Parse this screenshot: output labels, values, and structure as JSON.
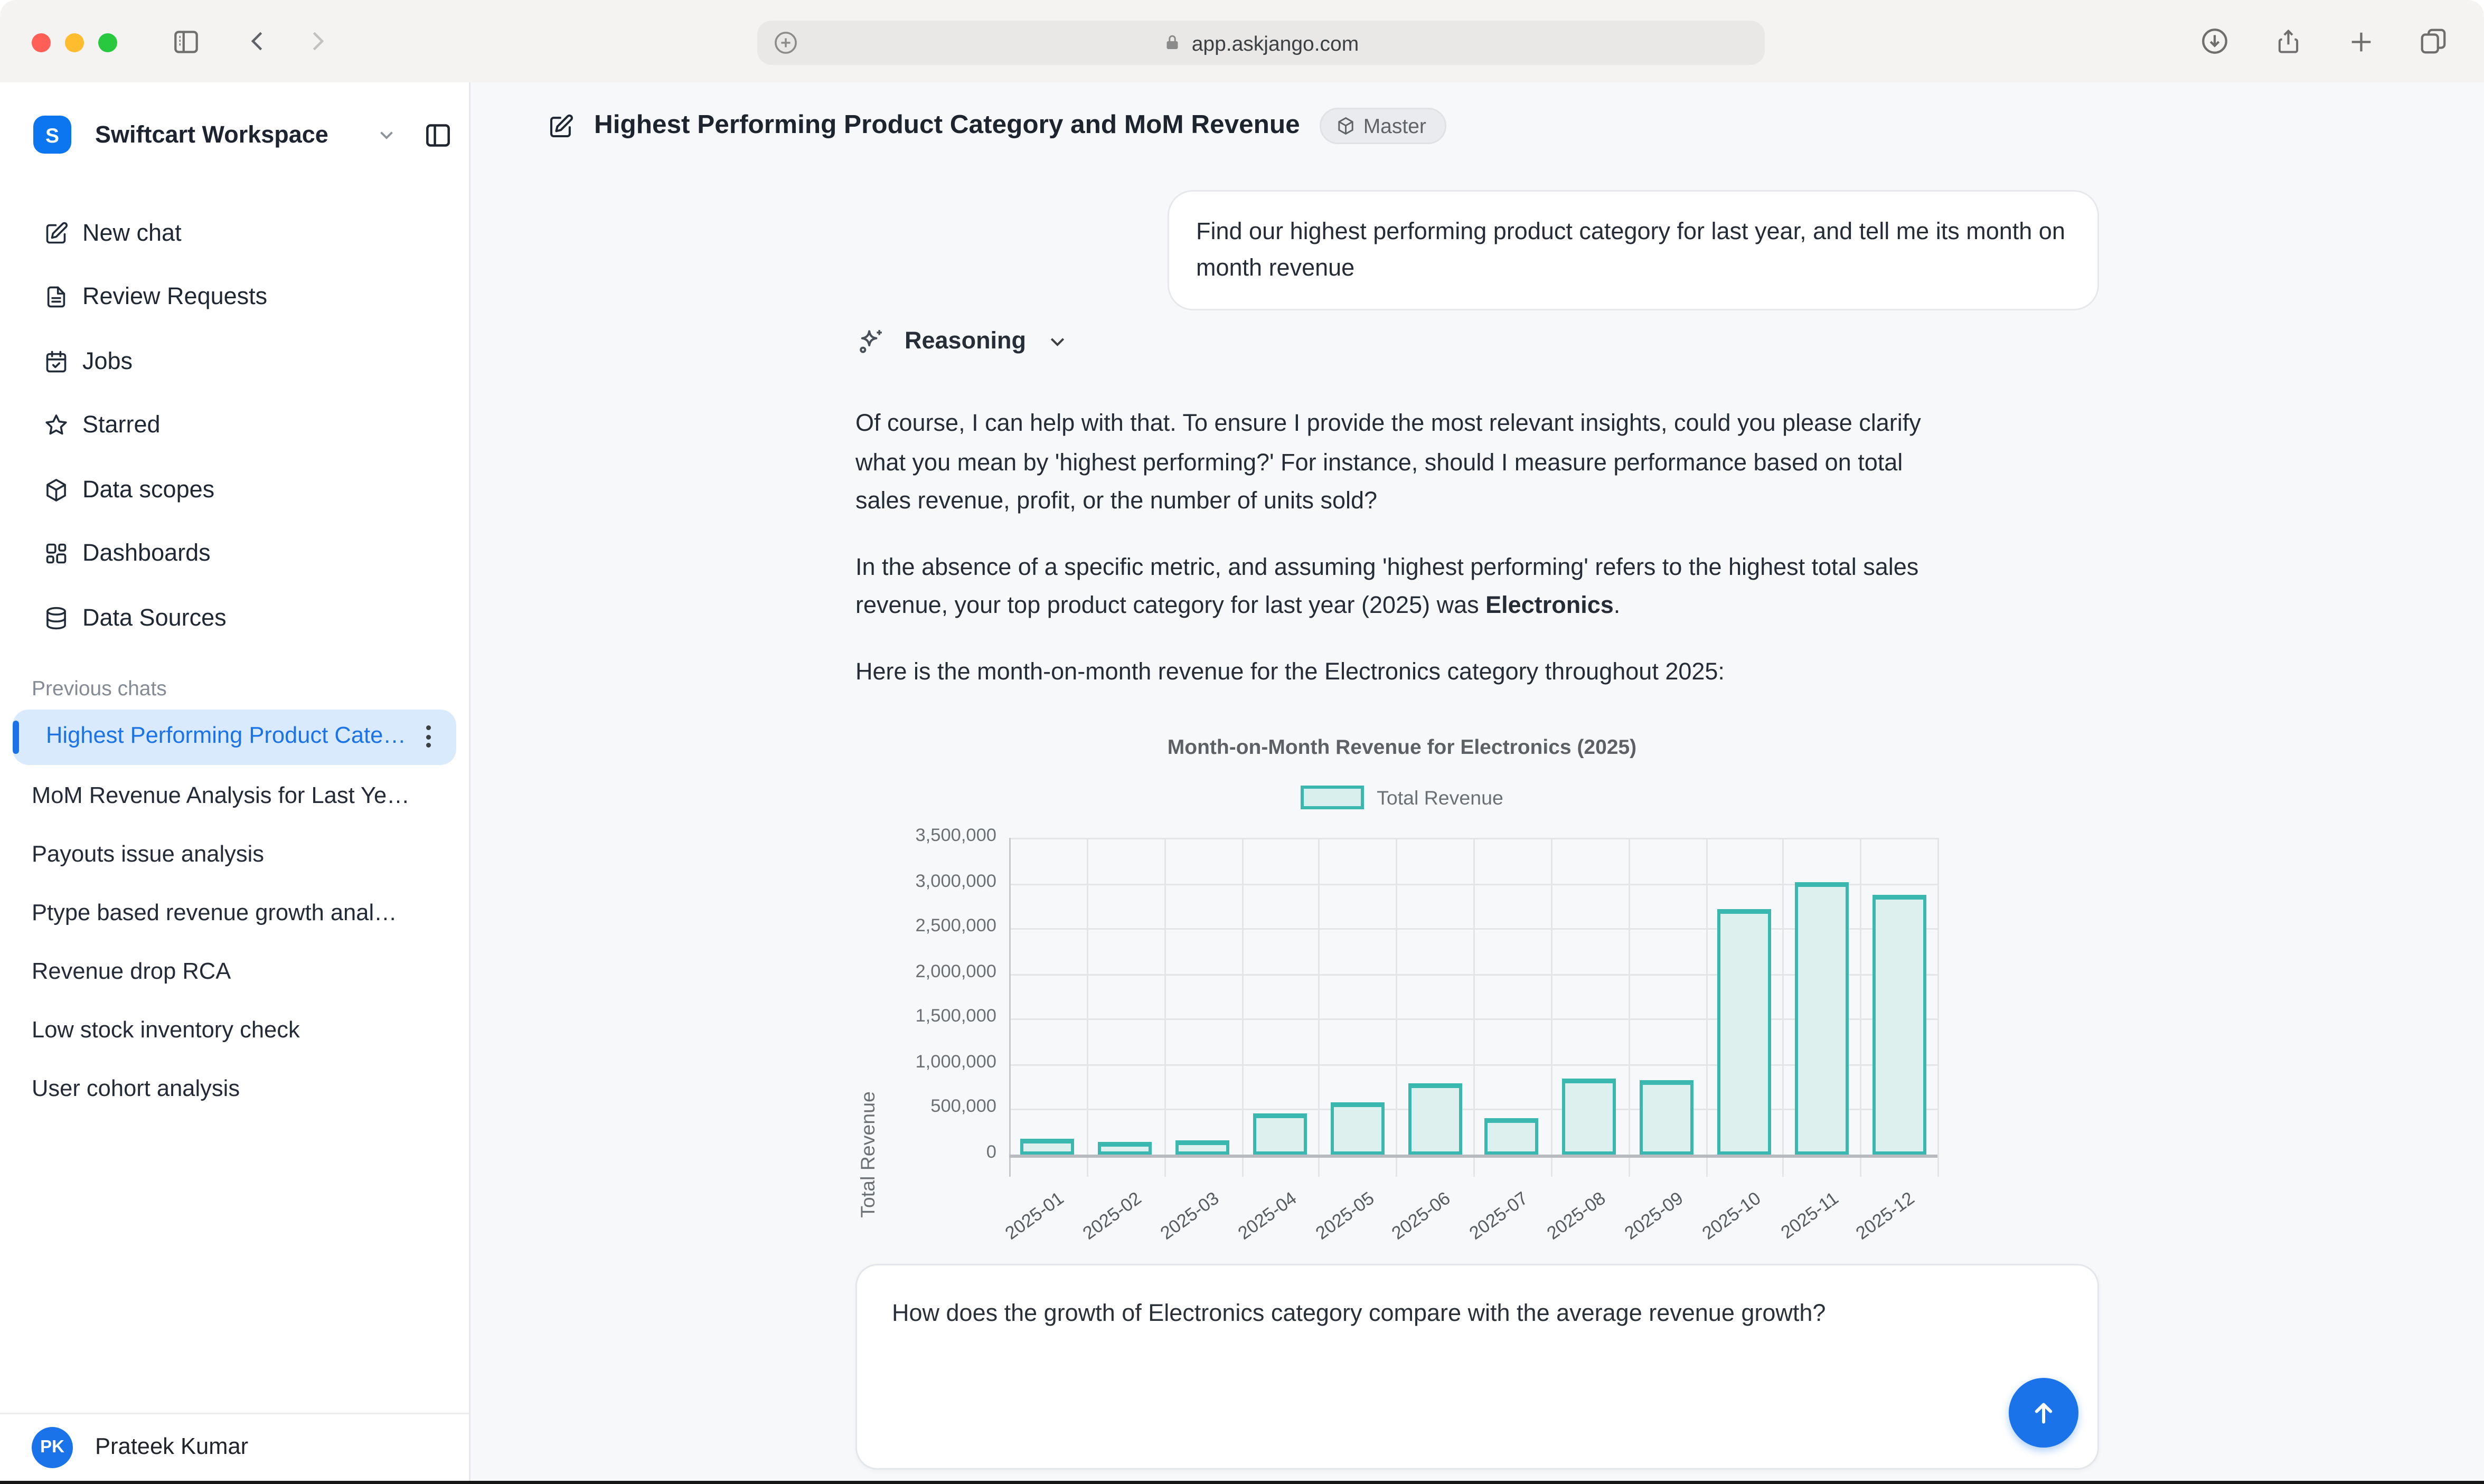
{
  "browser": {
    "url": "app.askjango.com",
    "traffic_lights": {
      "close": "#ff5f57",
      "minimize": "#febc2e",
      "zoom": "#29c93f"
    }
  },
  "sidebar": {
    "workspace": {
      "initial": "S",
      "name": "Swiftcart Workspace"
    },
    "nav": [
      {
        "id": "new-chat",
        "icon": "edit-square-icon",
        "label": "New chat"
      },
      {
        "id": "review-requests",
        "icon": "document-icon",
        "label": "Review Requests"
      },
      {
        "id": "jobs",
        "icon": "calendar-check-icon",
        "label": "Jobs"
      },
      {
        "id": "starred",
        "icon": "star-icon",
        "label": "Starred"
      },
      {
        "id": "data-scopes",
        "icon": "cube-icon",
        "label": "Data scopes"
      },
      {
        "id": "dashboards",
        "icon": "grid-icon",
        "label": "Dashboards"
      },
      {
        "id": "data-sources",
        "icon": "database-icon",
        "label": "Data Sources"
      }
    ],
    "previous_chats_header": "Previous chats",
    "chats": [
      {
        "label": "Highest Performing Product Cate…",
        "active": true
      },
      {
        "label": "MoM Revenue Analysis for Last Ye…",
        "active": false
      },
      {
        "label": "Payouts issue analysis",
        "active": false
      },
      {
        "label": "Ptype based revenue growth anal…",
        "active": false
      },
      {
        "label": "Revenue drop RCA",
        "active": false
      },
      {
        "label": "Low stock inventory check",
        "active": false
      },
      {
        "label": "User cohort analysis",
        "active": false
      }
    ],
    "user": {
      "initials": "PK",
      "name": "Prateek Kumar"
    }
  },
  "main": {
    "title": "Highest Performing Product Category and MoM Revenue",
    "badge_label": "Master",
    "user_message": "Find our highest performing product category for last year, and tell me its month on month revenue",
    "reasoning_label": "Reasoning",
    "answer": {
      "p1": "Of course, I can help with that. To ensure I provide the most relevant insights, could you please clarify what you mean by 'highest performing?' For instance, should I measure performance based on total sales revenue, profit, or the number of units sold?",
      "p2_before": "In the absence of a specific metric, and assuming 'highest performing' refers to the highest total sales revenue, your top product category for last year (2025) was ",
      "p2_bold": "Electronics",
      "p2_after": ".",
      "p3": "Here is the month-on-month revenue for the Electronics category throughout 2025:"
    },
    "composer": {
      "text": "How does the growth of Electronics category compare with the average revenue growth?"
    }
  },
  "chart_data": {
    "type": "bar",
    "title": "Month-on-Month Revenue for Electronics (2025)",
    "legend": [
      "Total Revenue"
    ],
    "ylabel": "Total Revenue",
    "categories": [
      "2025-01",
      "2025-02",
      "2025-03",
      "2025-04",
      "2025-05",
      "2025-06",
      "2025-07",
      "2025-08",
      "2025-09",
      "2025-10",
      "2025-11",
      "2025-12"
    ],
    "values": [
      180000,
      145000,
      165000,
      450000,
      575000,
      790000,
      410000,
      840000,
      820000,
      2720000,
      3010000,
      2870000
    ],
    "ylim": [
      0,
      3500000
    ],
    "ytick_step": 500000,
    "ytick_labels": [
      "0",
      "500,000",
      "1,000,000",
      "1,500,000",
      "2,000,000",
      "2,500,000",
      "3,000,000",
      "3,500,000"
    ],
    "grid": true,
    "legend_position": "top",
    "bar_fill": "#def0ee",
    "bar_border": "#3ab7ae"
  }
}
